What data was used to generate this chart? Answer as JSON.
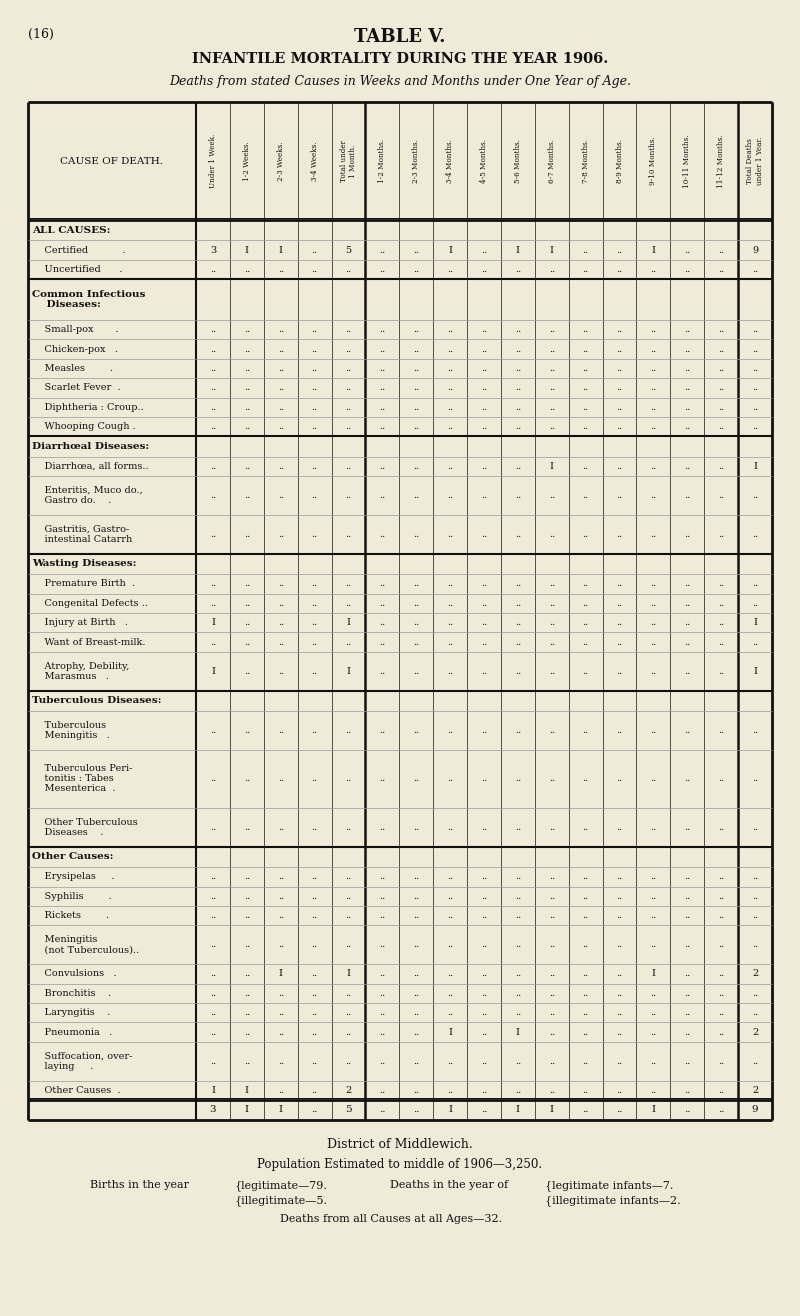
{
  "page_label": "(16)",
  "title": "TABLE V.",
  "subtitle": "INFANTILE MORTALITY DURING THE YEAR 1906.",
  "subtitle2": "Deaths from stated Causes in Weeks and Months under One Year of Age.",
  "bg_color": "#f0ead8",
  "col_headers": [
    "Under 1 Week.",
    "1-2 Weeks.",
    "2-3 Weeks.",
    "3-4 Weeks.",
    "Total under\n1 Month.",
    "1-2 Months.",
    "2-3 Months.",
    "3-4 Months.",
    "4-5 Months.",
    "5-6 Months.",
    "6-7 Months.",
    "7-8 Months.",
    "8-9 Months.",
    "9-10 Months.",
    "10-11 Months.",
    "11-12 Months.",
    "Total Deaths\nunder 1 Year."
  ],
  "rows": [
    {
      "label": "ALL CAUSES:",
      "bold": true,
      "header": true,
      "values": [
        "",
        "",
        "",
        "",
        "",
        "",
        "",
        "",
        "",
        "",
        "",
        "",
        "",
        "",
        "",
        "",
        ""
      ]
    },
    {
      "label": "    Certified           .",
      "bold": false,
      "header": false,
      "values": [
        "3",
        "I",
        "I",
        "..",
        "5",
        "..",
        "..",
        "I",
        "..",
        "I",
        "I",
        "..",
        "..",
        "I",
        "..",
        "..",
        "9"
      ]
    },
    {
      "label": "    Uncertified      .",
      "bold": false,
      "header": false,
      "values": [
        "..",
        "..",
        "..",
        "..",
        "..",
        "..",
        "..",
        "..",
        "..",
        "..",
        "..",
        "..",
        "..",
        "..",
        "..",
        "..",
        ".."
      ]
    },
    {
      "label": "Common Infectious\n    Diseases:",
      "bold": true,
      "header": true,
      "values": [
        "",
        "",
        "",
        "",
        "",
        "",
        "",
        "",
        "",
        "",
        "",
        "",
        "",
        "",
        "",
        "",
        ""
      ]
    },
    {
      "label": "    Small-pox       .",
      "bold": false,
      "header": false,
      "values": [
        "..",
        "..",
        "..",
        "..",
        "..",
        "..",
        "..",
        "..",
        "..",
        "..",
        "..",
        "..",
        "..",
        "..",
        "..",
        "..",
        ".."
      ]
    },
    {
      "label": "    Chicken-pox   .",
      "bold": false,
      "header": false,
      "values": [
        "..",
        "..",
        "..",
        "..",
        "..",
        "..",
        "..",
        "..",
        "..",
        "..",
        "..",
        "..",
        "..",
        "..",
        "..",
        "..",
        ".."
      ]
    },
    {
      "label": "    Measles        .",
      "bold": false,
      "header": false,
      "values": [
        "..",
        "..",
        "..",
        "..",
        "..",
        "..",
        "..",
        "..",
        "..",
        "..",
        "..",
        "..",
        "..",
        "..",
        "..",
        "..",
        ".."
      ]
    },
    {
      "label": "    Scarlet Fever  .",
      "bold": false,
      "header": false,
      "values": [
        "..",
        "..",
        "..",
        "..",
        "..",
        "..",
        "..",
        "..",
        "..",
        "..",
        "..",
        "..",
        "..",
        "..",
        "..",
        "..",
        ".."
      ]
    },
    {
      "label": "    Diphtheria : Croup..",
      "bold": false,
      "header": false,
      "values": [
        "..",
        "..",
        "..",
        "..",
        "..",
        "..",
        "..",
        "..",
        "..",
        "..",
        "..",
        "..",
        "..",
        "..",
        "..",
        "..",
        ".."
      ]
    },
    {
      "label": "    Whooping Cough .",
      "bold": false,
      "header": false,
      "values": [
        "..",
        "..",
        "..",
        "..",
        "..",
        "..",
        "..",
        "..",
        "..",
        "..",
        "..",
        "..",
        "..",
        "..",
        "..",
        "..",
        ".."
      ]
    },
    {
      "label": "Diarrhœal Diseases:",
      "bold": true,
      "header": true,
      "values": [
        "",
        "",
        "",
        "",
        "",
        "",
        "",
        "",
        "",
        "",
        "",
        "",
        "",
        "",
        "",
        "",
        ""
      ]
    },
    {
      "label": "    Diarrhœa, all forms..",
      "bold": false,
      "header": false,
      "values": [
        "..",
        "..",
        "..",
        "..",
        "..",
        "..",
        "..",
        "..",
        "..",
        "..",
        "I",
        "..",
        "..",
        "..",
        "..",
        "..",
        "I"
      ]
    },
    {
      "label": "    Enteritis, Muco do.,\n    Gastro do.    .",
      "bold": false,
      "header": false,
      "values": [
        "..",
        "..",
        "..",
        "..",
        "..",
        "..",
        "..",
        "..",
        "..",
        "..",
        "..",
        "..",
        "..",
        "..",
        "..",
        "..",
        ".."
      ]
    },
    {
      "label": "    Gastritis, Gastro-\n    intestinal Catarrh",
      "bold": false,
      "header": false,
      "values": [
        "..",
        "..",
        "..",
        "..",
        "..",
        "..",
        "..",
        "..",
        "..",
        "..",
        "..",
        "..",
        "..",
        "..",
        "..",
        "..",
        ".."
      ]
    },
    {
      "label": "Wasting Diseases:",
      "bold": true,
      "header": true,
      "values": [
        "",
        "",
        "",
        "",
        "",
        "",
        "",
        "",
        "",
        "",
        "",
        "",
        "",
        "",
        "",
        "",
        ""
      ]
    },
    {
      "label": "    Premature Birth  .",
      "bold": false,
      "header": false,
      "values": [
        "..",
        "..",
        "..",
        "..",
        "..",
        "..",
        "..",
        "..",
        "..",
        "..",
        "..",
        "..",
        "..",
        "..",
        "..",
        "..",
        ".."
      ]
    },
    {
      "label": "    Congenital Defects ..",
      "bold": false,
      "header": false,
      "values": [
        "..",
        "..",
        "..",
        "..",
        "..",
        "..",
        "..",
        "..",
        "..",
        "..",
        "..",
        "..",
        "..",
        "..",
        "..",
        "..",
        ".."
      ]
    },
    {
      "label": "    Injury at Birth   .",
      "bold": false,
      "header": false,
      "values": [
        "I",
        "..",
        "..",
        "..",
        "I",
        "..",
        "..",
        "..",
        "..",
        "..",
        "..",
        "..",
        "..",
        "..",
        "..",
        "..",
        "I"
      ]
    },
    {
      "label": "    Want of Breast-milk.",
      "bold": false,
      "header": false,
      "values": [
        "..",
        "..",
        "..",
        "..",
        "..",
        "..",
        "..",
        "..",
        "..",
        "..",
        "..",
        "..",
        "..",
        "..",
        "..",
        "..",
        ".."
      ]
    },
    {
      "label": "    Atrophy, Debility,\n    Marasmus   .",
      "bold": false,
      "header": false,
      "values": [
        "I",
        "..",
        "..",
        "..",
        "I",
        "..",
        "..",
        "..",
        "..",
        "..",
        "..",
        "..",
        "..",
        "..",
        "..",
        "..",
        "I"
      ]
    },
    {
      "label": "Tuberculous Diseases:",
      "bold": true,
      "header": true,
      "values": [
        "",
        "",
        "",
        "",
        "",
        "",
        "",
        "",
        "",
        "",
        "",
        "",
        "",
        "",
        "",
        "",
        ""
      ]
    },
    {
      "label": "    Tuberculous\n    Meningitis   .",
      "bold": false,
      "header": false,
      "values": [
        "..",
        "..",
        "..",
        "..",
        "..",
        "..",
        "..",
        "..",
        "..",
        "..",
        "..",
        "..",
        "..",
        "..",
        "..",
        "..",
        ".."
      ]
    },
    {
      "label": "    Tuberculous Peri-\n    tonitis : Tabes\n    Mesenterica  .",
      "bold": false,
      "header": false,
      "values": [
        "..",
        "..",
        "..",
        "..",
        "..",
        "..",
        "..",
        "..",
        "..",
        "..",
        "..",
        "..",
        "..",
        "..",
        "..",
        "..",
        ".."
      ]
    },
    {
      "label": "    Other Tuberculous\n    Diseases    .",
      "bold": false,
      "header": false,
      "values": [
        "..",
        "..",
        "..",
        "..",
        "..",
        "..",
        "..",
        "..",
        "..",
        "..",
        "..",
        "..",
        "..",
        "..",
        "..",
        "..",
        ".."
      ]
    },
    {
      "label": "Other Causes:",
      "bold": true,
      "header": true,
      "values": [
        "",
        "",
        "",
        "",
        "",
        "",
        "",
        "",
        "",
        "",
        "",
        "",
        "",
        "",
        "",
        "",
        ""
      ]
    },
    {
      "label": "    Erysipelas     .",
      "bold": false,
      "header": false,
      "values": [
        "..",
        "..",
        "..",
        "..",
        "..",
        "..",
        "..",
        "..",
        "..",
        "..",
        "..",
        "..",
        "..",
        "..",
        "..",
        "..",
        ".."
      ]
    },
    {
      "label": "    Syphilis        .",
      "bold": false,
      "header": false,
      "values": [
        "..",
        "..",
        "..",
        "..",
        "..",
        "..",
        "..",
        "..",
        "..",
        "..",
        "..",
        "..",
        "..",
        "..",
        "..",
        "..",
        ".."
      ]
    },
    {
      "label": "    Rickets        .",
      "bold": false,
      "header": false,
      "values": [
        "..",
        "..",
        "..",
        "..",
        "..",
        "..",
        "..",
        "..",
        "..",
        "..",
        "..",
        "..",
        "..",
        "..",
        "..",
        "..",
        ".."
      ]
    },
    {
      "label": "    Meningitis\n    (not Tuberculous)..",
      "bold": false,
      "header": false,
      "values": [
        "..",
        "..",
        "..",
        "..",
        "..",
        "..",
        "..",
        "..",
        "..",
        "..",
        "..",
        "..",
        "..",
        "..",
        "..",
        "..",
        ".."
      ]
    },
    {
      "label": "    Convulsions   .",
      "bold": false,
      "header": false,
      "values": [
        "..",
        "..",
        "I",
        "..",
        "I",
        "..",
        "..",
        "..",
        "..",
        "..",
        "..",
        "..",
        "..",
        "I",
        "..",
        "..",
        "2"
      ]
    },
    {
      "label": "    Bronchitis    .",
      "bold": false,
      "header": false,
      "values": [
        "..",
        "..",
        "..",
        "..",
        "..",
        "..",
        "..",
        "..",
        "..",
        "..",
        "..",
        "..",
        "..",
        "..",
        "..",
        "..",
        ".."
      ]
    },
    {
      "label": "    Laryngitis    .",
      "bold": false,
      "header": false,
      "values": [
        "..",
        "..",
        "..",
        "..",
        "..",
        "..",
        "..",
        "..",
        "..",
        "..",
        "..",
        "..",
        "..",
        "..",
        "..",
        "..",
        ".."
      ]
    },
    {
      "label": "    Pneumonia   .",
      "bold": false,
      "header": false,
      "values": [
        "..",
        "..",
        "..",
        "..",
        "..",
        "..",
        "..",
        "I",
        "..",
        "I",
        "..",
        "..",
        "..",
        "..",
        "..",
        "..",
        "2"
      ]
    },
    {
      "label": "    Suffocation, over-\n    laying     .",
      "bold": false,
      "header": false,
      "values": [
        "..",
        "..",
        "..",
        "..",
        "..",
        "..",
        "..",
        "..",
        "..",
        "..",
        "..",
        "..",
        "..",
        "..",
        "..",
        "..",
        ".."
      ]
    },
    {
      "label": "    Other Causes  .",
      "bold": false,
      "header": false,
      "values": [
        "I",
        "I",
        "..",
        "..",
        "2",
        "..",
        "..",
        "..",
        "..",
        "..",
        "..",
        "..",
        "..",
        "..",
        "..",
        "..",
        "2"
      ]
    }
  ],
  "footer_row": [
    "3",
    "I",
    "I",
    "..",
    "5",
    "..",
    "..",
    "I",
    "..",
    "I",
    "I",
    "..",
    "..",
    "I",
    "..",
    "..",
    "9"
  ],
  "section_breaks": [
    0,
    3,
    10,
    14,
    20,
    24
  ],
  "thick_col_after": [
    4,
    16
  ],
  "footnote1": "District of Middlewich.",
  "footnote2": "Population Estimated to middle of 1906—3,250.",
  "footnote3a": "Births in the year",
  "footnote3b": "{legitimate—79.",
  "footnote3c": "{illegitimate—5.",
  "footnote3d": "Deaths in the year of",
  "footnote3e": "{legitimate infants—7.",
  "footnote3f": "{illegitimate infants—2.",
  "footnote4": "Deaths from all Causes at all Ages—32."
}
